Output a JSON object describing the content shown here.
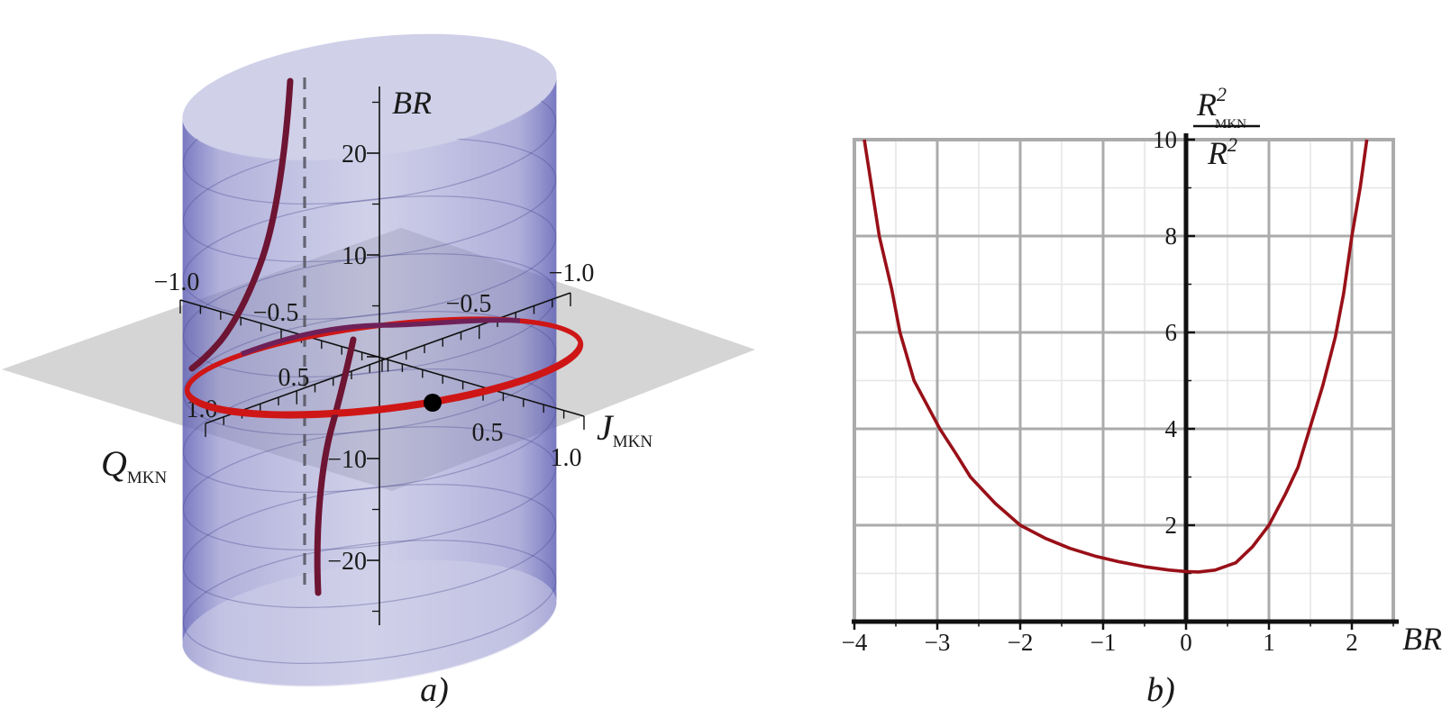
{
  "figure": {
    "panel_a": {
      "caption": "a)",
      "z_axis": {
        "label": "BR",
        "tick_labels": [
          "20",
          "10",
          "−10",
          "−20"
        ]
      },
      "j_axis": {
        "label_main": "J",
        "label_sub": "MKN",
        "tick_labels": [
          "−1.0",
          "−0.5",
          "0.5",
          "1.0"
        ]
      },
      "q_axis": {
        "label_main": "Q",
        "label_sub": "MKN",
        "tick_labels": [
          "−1.0",
          "−0.5",
          "0.5",
          "1.0"
        ]
      },
      "colors": {
        "cylinder": "#8d8dc8",
        "cylinder_cap": "#cdcde8",
        "plane": "#d5d5d5",
        "trajectory_front": "#cf1616",
        "trajectory_back": "#6e2158",
        "trajectory_branch": "#6d1533",
        "dashed_guide": "#53535f",
        "point": "#000000"
      }
    },
    "panel_b": {
      "caption": "b)",
      "x_axis": {
        "label": "BR",
        "tick_labels": [
          "−4",
          "−3",
          "−2",
          "−1",
          "0",
          "1",
          "2"
        ]
      },
      "y_axis": {
        "tick_labels": [
          "10",
          "8",
          "6",
          "4",
          "2"
        ],
        "frac": {
          "num_base": "R",
          "num_sup": "2",
          "num_sub": "MKN",
          "den_base": "R",
          "den_sup": "2"
        }
      },
      "colors": {
        "curve": "#991018",
        "grid_major": "#ababab",
        "grid_minor": "#e6e6e6",
        "axis": "#111111"
      }
    }
  },
  "chart_data": [
    {
      "type": "line",
      "panel": "a",
      "subtype": "3d-parametric-scene",
      "title": "",
      "axes": {
        "x_label": "J_MKN",
        "x_range": [
          -1,
          1
        ],
        "y_label": "Q_MKN",
        "y_range": [
          -1,
          1
        ],
        "z_label": "BR",
        "z_range": [
          -25,
          25
        ]
      },
      "z_tick_values": [
        20,
        10,
        -10,
        -20
      ],
      "j_tick_values": [
        -1.0,
        -0.5,
        0.5,
        1.0
      ],
      "q_tick_values": [
        -1.0,
        -0.5,
        0.5,
        1.0
      ],
      "elements": [
        "translucent blue cylinder J_MKN^2 + Q_MKN^2 = 1 with horizontal contour circles",
        "translucent gray plane at BR = 0",
        "red trajectory winding around the cylinder near BR = 0 with two steep branches running up (to BR > 25) and down (to BR < -25) along a vertical asymptote",
        "gray vertical dashed guide line marking the asymptote on the cylinder",
        "black marker point on the trajectory at approximately (J_MKN = 0.48, Q_MKN = 0.25, BR = 0)"
      ]
    },
    {
      "type": "line",
      "panel": "b",
      "title": "",
      "xlabel": "BR",
      "ylabel": "R_MKN^2 / R^2",
      "xlim": [
        -4,
        2.5
      ],
      "ylim": [
        0,
        10
      ],
      "x_ticks": [
        -4,
        -3,
        -2,
        -1,
        0,
        1,
        2
      ],
      "y_ticks": [
        2,
        4,
        6,
        8,
        10
      ],
      "grid": "major and minor gridlines, minor at half-integer x and odd-integer y",
      "series": [
        {
          "name": "R_MKN^2 / R^2 versus BR",
          "color": "#991018",
          "points": [
            [
              -3.88,
              10.0
            ],
            [
              -3.7,
              8.0
            ],
            [
              -3.55,
              6.9
            ],
            [
              -3.45,
              6.0
            ],
            [
              -3.28,
              5.0
            ],
            [
              -2.97,
              4.0
            ],
            [
              -2.78,
              3.5
            ],
            [
              -2.6,
              3.0
            ],
            [
              -2.3,
              2.45
            ],
            [
              -2.0,
              2.0
            ],
            [
              -1.7,
              1.73
            ],
            [
              -1.4,
              1.52
            ],
            [
              -1.1,
              1.36
            ],
            [
              -0.8,
              1.24
            ],
            [
              -0.5,
              1.14
            ],
            [
              -0.2,
              1.07
            ],
            [
              0.0,
              1.04
            ],
            [
              0.15,
              1.03
            ],
            [
              0.35,
              1.07
            ],
            [
              0.6,
              1.22
            ],
            [
              0.8,
              1.55
            ],
            [
              1.0,
              2.0
            ],
            [
              1.2,
              2.65
            ],
            [
              1.35,
              3.2
            ],
            [
              1.5,
              4.05
            ],
            [
              1.65,
              4.9
            ],
            [
              1.8,
              5.9
            ],
            [
              1.9,
              6.8
            ],
            [
              2.0,
              8.0
            ],
            [
              2.1,
              9.0
            ],
            [
              2.18,
              10.0
            ]
          ]
        }
      ]
    }
  ]
}
